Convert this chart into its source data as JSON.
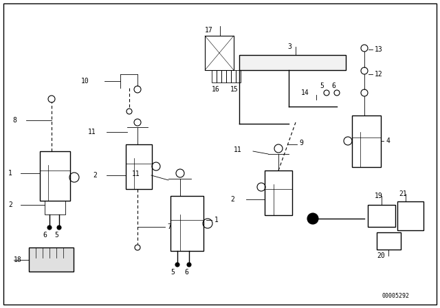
{
  "bg_color": "#ffffff",
  "line_color": "#000000",
  "part_number_text": "00005292",
  "font_size_label": 7,
  "font_size_partnum": 6
}
